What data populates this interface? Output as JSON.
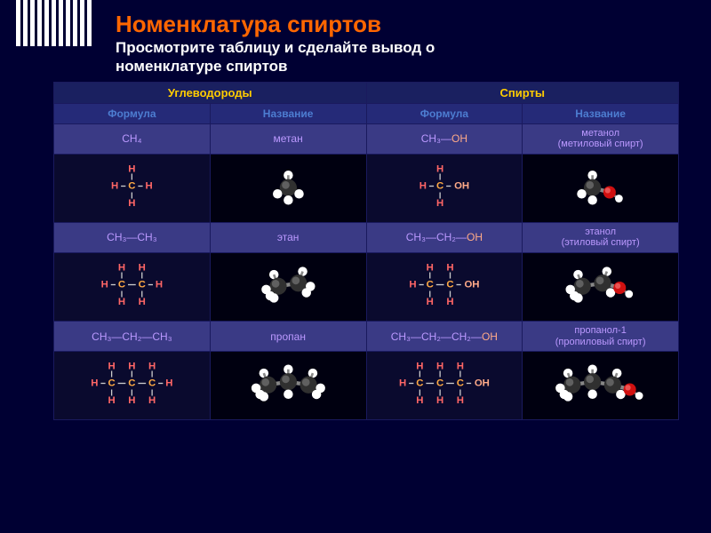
{
  "title": "Номенклатура спиртов",
  "subtitle1": "Просмотрите таблицу и сделайте вывод о",
  "subtitle2": "номенклатуре спиртов",
  "headers": {
    "hydrocarbons": "Углеводороды",
    "alcohols": "Спирты",
    "formula": "Формула",
    "name": "Название"
  },
  "rows": [
    {
      "hc_formula": "CH₄",
      "hc_name": "метан",
      "al_formula_pre": "CH₃—",
      "al_formula_oh": "OH",
      "al_name1": "метанол",
      "al_name2": "(метиловый спирт)"
    },
    {
      "hc_formula": "CH₃—CH₃",
      "hc_name": "этан",
      "al_formula_pre": "CH₃—CH₂—",
      "al_formula_oh": "OH",
      "al_name1": "этанол",
      "al_name2": "(этиловый спирт)"
    },
    {
      "hc_formula": "CH₃—CH₂—CH₃",
      "hc_name": "пропан",
      "al_formula_pre": "CH₃—CH₂—CH₂—",
      "al_formula_oh": "OH",
      "al_name1": "пропанол-1",
      "al_name2": "(пропиловый спирт)"
    }
  ],
  "colors": {
    "H": "#ff6666",
    "C": "#ffaa44",
    "OH": "#ffaa88",
    "bond": "#cccccc",
    "carbon3d": "#303030",
    "carbonHi": "#808080",
    "hydrogen3d": "#ffffff",
    "hydrogenHi": "#ffffff",
    "oxygen3d": "#d01010",
    "oxygenHi": "#ff8080"
  }
}
